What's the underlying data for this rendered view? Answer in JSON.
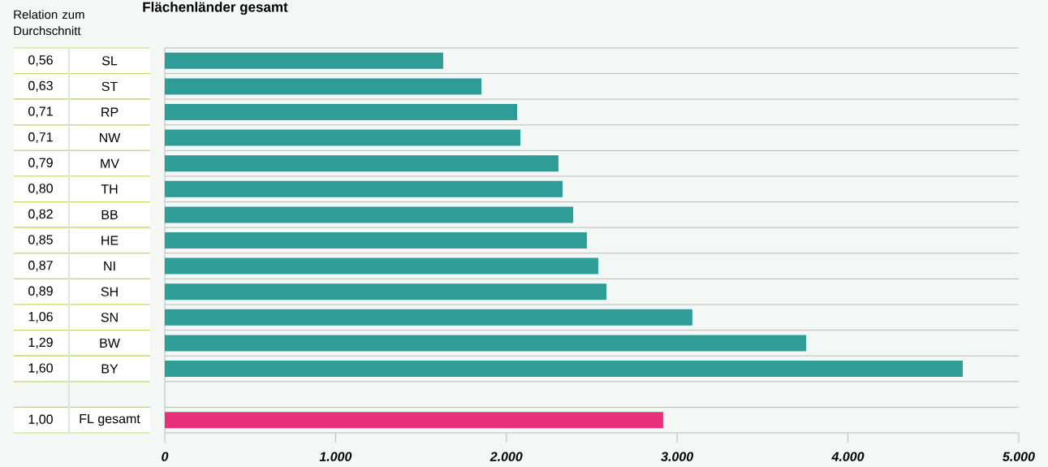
{
  "chart_data": {
    "type": "bar",
    "orientation": "horizontal",
    "title": "Flächenländer gesamt",
    "categories": [
      "SL",
      "ST",
      "RP",
      "NW",
      "MV",
      "TH",
      "BB",
      "HE",
      "NI",
      "SH",
      "SN",
      "BW",
      "BY",
      null,
      "FL gesamt"
    ],
    "values": [
      1630,
      1854,
      2063,
      2082,
      2305,
      2329,
      2391,
      2471,
      2538,
      2586,
      3089,
      3755,
      4672,
      null,
      2918
    ],
    "colors": [
      "#2e9c97",
      "#2e9c97",
      "#2e9c97",
      "#2e9c97",
      "#2e9c97",
      "#2e9c97",
      "#2e9c97",
      "#2e9c97",
      "#2e9c97",
      "#2e9c97",
      "#2e9c97",
      "#2e9c97",
      "#2e9c97",
      "#2e9c97",
      "#e8317a"
    ],
    "xlim": [
      0,
      5000
    ],
    "xticks": [
      0,
      {
        "value": 1000,
        "label": "1.000"
      },
      {
        "value": 2000,
        "label": "2.000"
      },
      {
        "value": 3000,
        "label": "3.000"
      },
      {
        "value": 4000,
        "label": "4.000"
      },
      {
        "value": 5000,
        "label": "5.000"
      }
    ],
    "annotations": [
      "Relation zum Durchschnitt",
      "0,56",
      "0,63",
      "0,71",
      "0,71",
      "0,79",
      "0,80",
      "0,82",
      "0,85",
      "0,87",
      "0,89",
      "1,06",
      "1,29",
      "1,60",
      null,
      "1,00"
    ]
  }
}
